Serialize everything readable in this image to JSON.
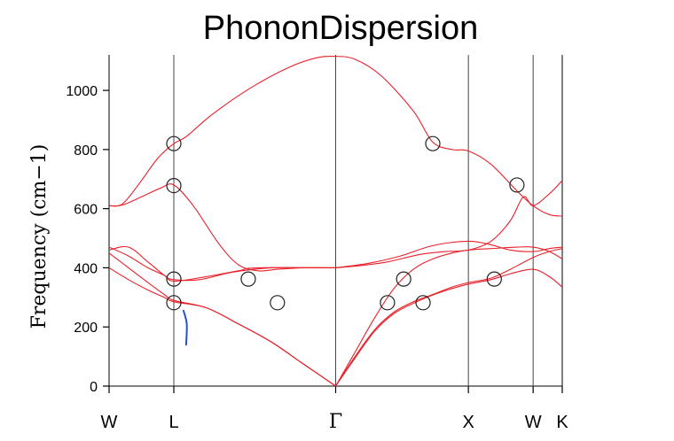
{
  "chart_data": {
    "type": "line",
    "title": "PhononDispersion",
    "xlabel": "",
    "ylabel": "Frequency (cm−1)",
    "ylim": [
      0,
      1120
    ],
    "xlim": [
      0,
      7
    ],
    "yticks": [
      0,
      200,
      400,
      600,
      800,
      1000
    ],
    "xticks": [
      {
        "label": "W",
        "x": 0
      },
      {
        "label": "L",
        "x": 1
      },
      {
        "label": "Γ",
        "x": 3.5
      },
      {
        "label": "X",
        "x": 5.55
      },
      {
        "label": "W",
        "x": 6.55
      },
      {
        "label": "K",
        "x": 7
      }
    ],
    "vlines": [
      1,
      3.5,
      5.55,
      6.55
    ],
    "curve_color": "#e8202a",
    "marker_color": "#222222",
    "annotation_color": "#2a4fd6",
    "series": [
      {
        "x": [
          0,
          0.2,
          0.45,
          0.75,
          1,
          1.2,
          1.6,
          2.2,
          2.8,
          3.2,
          3.5,
          3.8,
          4.2,
          4.7,
          5.0,
          5.3,
          5.55,
          5.9,
          6.3,
          6.55,
          6.8,
          7.0
        ],
        "y": [
          610,
          615,
          680,
          770,
          820,
          845,
          920,
          1010,
          1080,
          1110,
          1115,
          1105,
          1050,
          930,
          825,
          800,
          795,
          750,
          660,
          610,
          580,
          575
        ]
      },
      {
        "x": [
          0,
          0.2,
          0.5,
          0.8,
          1,
          1.3,
          1.7,
          2.0,
          2.3,
          2.6,
          3.0,
          3.5
        ],
        "y": [
          610,
          612,
          640,
          670,
          680,
          610,
          480,
          410,
          390,
          395,
          400,
          400
        ]
      },
      {
        "x": [
          3.5,
          3.9,
          4.3,
          4.8,
          5.2,
          5.55,
          5.9,
          6.2,
          6.4,
          6.55,
          6.8,
          7.0
        ],
        "y": [
          400,
          408,
          420,
          445,
          455,
          460,
          490,
          560,
          640,
          610,
          650,
          695
        ]
      },
      {
        "x": [
          0,
          0.3,
          0.6,
          0.85,
          1,
          1.4,
          1.9,
          2.5,
          3.0,
          3.5
        ],
        "y": [
          460,
          470,
          420,
          375,
          360,
          360,
          385,
          400,
          400,
          400
        ]
      },
      {
        "x": [
          3.5,
          4.0,
          4.5,
          5.0,
          5.55,
          5.9,
          6.2,
          6.55,
          6.8,
          7.0
        ],
        "y": [
          400,
          415,
          440,
          475,
          490,
          478,
          460,
          455,
          465,
          470
        ]
      },
      {
        "x": [
          0,
          0.3,
          0.6,
          0.85,
          1,
          1.5,
          2.0,
          2.3,
          3.5
        ],
        "y": [
          470,
          440,
          400,
          375,
          355,
          370,
          390,
          400,
          400
        ]
      },
      {
        "x": [
          3.5,
          3.8,
          4.1,
          4.4,
          4.7,
          5.0,
          5.3,
          5.55,
          5.9,
          6.3,
          6.55,
          6.8,
          7.0
        ],
        "y": [
          0,
          115,
          230,
          330,
          395,
          430,
          450,
          460,
          465,
          470,
          470,
          455,
          430
        ]
      },
      {
        "x": [
          0,
          0.3,
          0.6,
          0.85,
          1,
          1.5,
          2.0,
          2.5,
          3.0,
          3.5
        ],
        "y": [
          450,
          400,
          350,
          310,
          290,
          265,
          210,
          150,
          75,
          0
        ]
      },
      {
        "x": [
          0,
          0.3,
          0.6,
          0.85,
          1,
          1.5,
          2.0,
          2.5,
          3.0,
          3.5
        ],
        "y": [
          400,
          360,
          325,
          300,
          285,
          265,
          210,
          150,
          75,
          0
        ]
      },
      {
        "x": [
          3.5,
          3.8,
          4.1,
          4.4,
          4.7,
          5.0,
          5.3,
          5.55,
          5.9,
          6.2,
          6.55,
          6.8,
          7.0
        ],
        "y": [
          0,
          100,
          190,
          250,
          285,
          310,
          335,
          350,
          365,
          395,
          435,
          455,
          465
        ]
      },
      {
        "x": [
          3.5,
          3.8,
          4.1,
          4.4,
          4.7,
          5.0,
          5.3,
          5.55,
          5.9,
          6.2,
          6.55,
          6.8,
          7.0
        ],
        "y": [
          0,
          95,
          185,
          245,
          280,
          308,
          330,
          345,
          360,
          380,
          395,
          370,
          335
        ]
      }
    ],
    "markers": [
      {
        "x": 1,
        "y": 820
      },
      {
        "x": 1,
        "y": 678
      },
      {
        "x": 1,
        "y": 362
      },
      {
        "x": 1,
        "y": 282
      },
      {
        "x": 2.15,
        "y": 362
      },
      {
        "x": 2.6,
        "y": 282
      },
      {
        "x": 4.3,
        "y": 282
      },
      {
        "x": 4.55,
        "y": 362
      },
      {
        "x": 4.85,
        "y": 282
      },
      {
        "x": 5.0,
        "y": 820
      },
      {
        "x": 5.95,
        "y": 362
      },
      {
        "x": 6.3,
        "y": 680
      }
    ],
    "annotation_stroke": {
      "x": [
        1.15,
        1.2,
        1.19
      ],
      "y": [
        255,
        210,
        140
      ]
    }
  }
}
